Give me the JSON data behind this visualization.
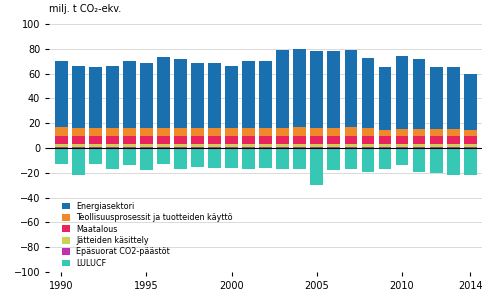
{
  "years": [
    1990,
    1991,
    1992,
    1993,
    1994,
    1995,
    1996,
    1997,
    1998,
    1999,
    2000,
    2001,
    2002,
    2003,
    2004,
    2005,
    2006,
    2007,
    2008,
    2009,
    2010,
    2011,
    2012,
    2013,
    2014
  ],
  "energiasektori": [
    53,
    50,
    49,
    50,
    54,
    52,
    57,
    55,
    52,
    52,
    50,
    54,
    54,
    63,
    63,
    62,
    62,
    62,
    57,
    51,
    59,
    56,
    50,
    50,
    45
  ],
  "teollisuus": [
    7.5,
    7.0,
    6.5,
    6.5,
    7.0,
    7.0,
    7.0,
    7.0,
    7.0,
    7.0,
    7.0,
    7.0,
    7.0,
    7.0,
    7.5,
    7.0,
    7.0,
    7.5,
    6.5,
    5.0,
    6.0,
    6.0,
    5.5,
    5.5,
    5.0
  ],
  "maatalous": [
    6.5,
    6.5,
    6.5,
    6.5,
    6.5,
    6.5,
    6.5,
    6.5,
    6.5,
    6.5,
    6.5,
    6.5,
    6.5,
    6.5,
    6.5,
    6.5,
    6.5,
    6.5,
    6.5,
    6.5,
    6.5,
    6.5,
    6.5,
    6.5,
    6.5
  ],
  "jatteiden": [
    2.0,
    2.0,
    2.0,
    2.0,
    2.0,
    2.0,
    2.0,
    2.0,
    2.0,
    2.0,
    2.0,
    2.0,
    2.0,
    2.0,
    2.0,
    2.0,
    2.0,
    2.0,
    2.0,
    2.0,
    2.0,
    2.0,
    2.0,
    2.0,
    2.0
  ],
  "epasuorat": [
    1.0,
    1.0,
    1.0,
    1.0,
    1.0,
    1.0,
    1.0,
    1.0,
    1.0,
    1.0,
    1.0,
    1.0,
    1.0,
    1.0,
    1.0,
    1.0,
    1.0,
    1.0,
    1.0,
    1.0,
    1.0,
    1.0,
    1.0,
    1.0,
    1.0
  ],
  "lulucf": [
    -13,
    -22,
    -13,
    -17,
    -14,
    -18,
    -13,
    -17,
    -15,
    -16,
    -16,
    -17,
    -16,
    -17,
    -17,
    -30,
    -18,
    -17,
    -19,
    -17,
    -14,
    -19,
    -20,
    -22,
    -22
  ],
  "colors": {
    "energiasektori": "#1a6faf",
    "teollisuus": "#f0892a",
    "maatalous": "#e8235e",
    "jatteiden": "#c8d44e",
    "epasuorat": "#c030b0",
    "lulucf": "#36c8b4"
  },
  "top_label": "milj. t CO₂-ekv.",
  "ylim": [
    -100,
    100
  ],
  "yticks": [
    -100,
    -80,
    -60,
    -40,
    -20,
    0,
    20,
    40,
    60,
    80,
    100
  ],
  "xticks": [
    1990,
    1995,
    2000,
    2005,
    2010,
    2014
  ],
  "legend_labels": [
    "Energiasektori",
    "Teollisuusprosessit ja tuotteiden käyttö",
    "Maatalous",
    "Jätteiden käsittely",
    "Epäsuorat CO2-päästöt",
    "LULUCF"
  ],
  "bar_width": 0.75
}
